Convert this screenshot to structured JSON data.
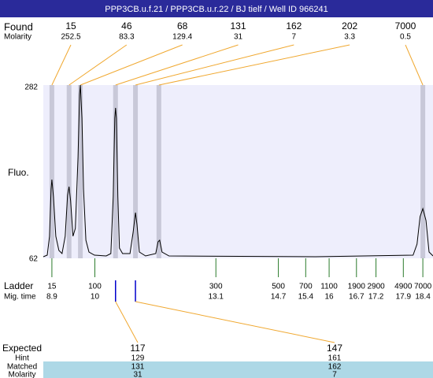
{
  "chart_data": {
    "type": "electropherogram",
    "title": "PPP3CB.u.f.21 / PPP3CB.u.r.22 / BJ tielf / Well ID 966241",
    "y_label": "Fluo.",
    "ylim": [
      62,
      282
    ],
    "yticks": [
      62,
      282
    ],
    "xlim": [
      8.68,
      18.66
    ],
    "found_label": "Found",
    "found_molarity_label": "Molarity",
    "found": {
      "sizes": [
        15,
        46,
        68,
        131,
        162,
        202,
        7000
      ],
      "molarity": [
        252.5,
        83.3,
        129.4,
        31,
        7,
        3.3,
        0.5
      ],
      "time": [
        8.9,
        9.34,
        9.63,
        10.53,
        11.04,
        11.64,
        18.4
      ]
    },
    "ladder": {
      "label": "Ladder",
      "time_label": "Mig. time",
      "sizes": [
        15,
        100,
        300,
        500,
        700,
        1100,
        1900,
        2900,
        4900,
        7000
      ],
      "times": [
        8.9,
        10,
        13.1,
        14.7,
        15.4,
        16,
        16.7,
        17.2,
        17.9,
        18.4
      ]
    },
    "trace": {
      "x": [
        8.68,
        8.78,
        8.84,
        8.88,
        8.9,
        8.94,
        9.0,
        9.08,
        9.16,
        9.24,
        9.3,
        9.34,
        9.38,
        9.44,
        9.5,
        9.57,
        9.61,
        9.63,
        9.67,
        9.71,
        9.77,
        9.85,
        9.99,
        10.29,
        10.41,
        10.47,
        10.51,
        10.53,
        10.55,
        10.59,
        10.63,
        10.71,
        10.9,
        10.98,
        11.04,
        11.08,
        11.14,
        11.3,
        11.56,
        11.62,
        11.66,
        11.72,
        11.9,
        15.65,
        18.15,
        18.25,
        18.33,
        18.4,
        18.48,
        18.56,
        18.66
      ],
      "y": [
        64,
        66,
        90,
        150,
        162,
        140,
        90,
        72,
        68,
        90,
        142,
        153,
        135,
        90,
        100,
        190,
        270,
        282,
        240,
        150,
        85,
        70,
        66,
        65,
        68,
        140,
        240,
        253,
        240,
        140,
        75,
        68,
        68,
        95,
        120,
        105,
        70,
        65,
        68,
        83,
        85,
        70,
        65,
        64,
        66,
        80,
        115,
        125,
        110,
        70,
        65
      ]
    },
    "expected": {
      "row_labels": [
        "Expected",
        "Hint",
        "Matched",
        "Molarity"
      ],
      "expected": [
        117,
        147
      ],
      "hint": [
        129,
        161
      ],
      "matched": [
        131,
        162
      ],
      "molarity": [
        31,
        7
      ],
      "time": [
        10.53,
        11.04
      ]
    }
  }
}
